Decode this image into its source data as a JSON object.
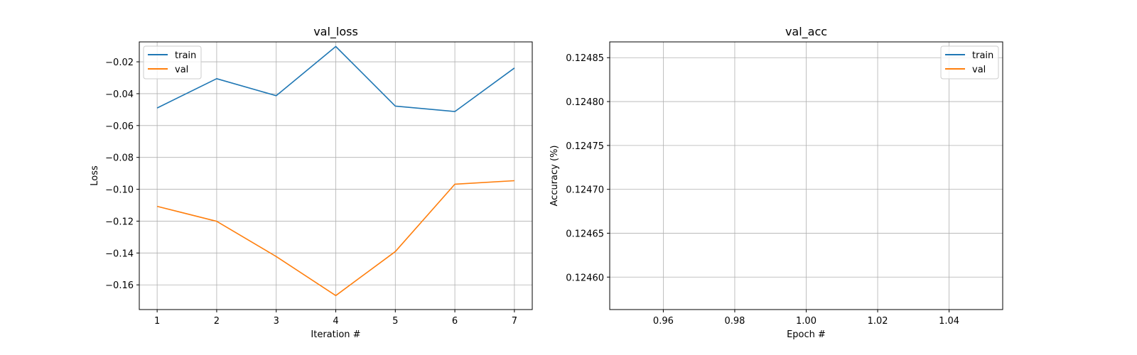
{
  "chart_data": [
    {
      "type": "line",
      "title": "val_loss",
      "xlabel": "Iteration #",
      "ylabel": "Loss",
      "x": [
        1,
        2,
        3,
        4,
        5,
        6,
        7
      ],
      "xticks": [
        "1",
        "2",
        "3",
        "4",
        "5",
        "6",
        "7"
      ],
      "yticks": [
        "−0.02",
        "−0.04",
        "−0.06",
        "−0.08",
        "−0.10",
        "−0.12",
        "−0.14",
        "−0.16"
      ],
      "ytick_values": [
        -0.02,
        -0.04,
        -0.06,
        -0.08,
        -0.1,
        -0.12,
        -0.14,
        -0.16
      ],
      "xlim": [
        0.7,
        7.3
      ],
      "ylim": [
        -0.1755,
        -0.0075
      ],
      "grid": true,
      "legend_position": "upper-left",
      "series": [
        {
          "name": "train",
          "color": "#1f77b4",
          "values": [
            -0.049,
            -0.0306,
            -0.0413,
            -0.0104,
            -0.0478,
            -0.0512,
            -0.0239
          ]
        },
        {
          "name": "val",
          "color": "#ff7f0e",
          "values": [
            -0.1107,
            -0.1201,
            -0.1422,
            -0.1667,
            -0.1391,
            -0.0968,
            -0.0946
          ]
        }
      ]
    },
    {
      "type": "line",
      "title": "val_acc",
      "xlabel": "Epoch #",
      "ylabel": "Accuracy (%)",
      "x": [],
      "xticks": [
        "0.96",
        "0.98",
        "1.00",
        "1.02",
        "1.04"
      ],
      "xtick_values": [
        0.96,
        0.98,
        1.0,
        1.02,
        1.04
      ],
      "yticks": [
        "0.12485",
        "0.12480",
        "0.12475",
        "0.12470",
        "0.12465",
        "0.12460"
      ],
      "ytick_values": [
        0.12485,
        0.1248,
        0.12475,
        0.1247,
        0.12465,
        0.1246
      ],
      "xlim": [
        0.945,
        1.055
      ],
      "ylim": [
        0.124563,
        0.124868
      ],
      "grid": true,
      "legend_position": "upper-right",
      "series": [
        {
          "name": "train",
          "color": "#1f77b4",
          "values": []
        },
        {
          "name": "val",
          "color": "#ff7f0e",
          "values": []
        }
      ]
    }
  ]
}
